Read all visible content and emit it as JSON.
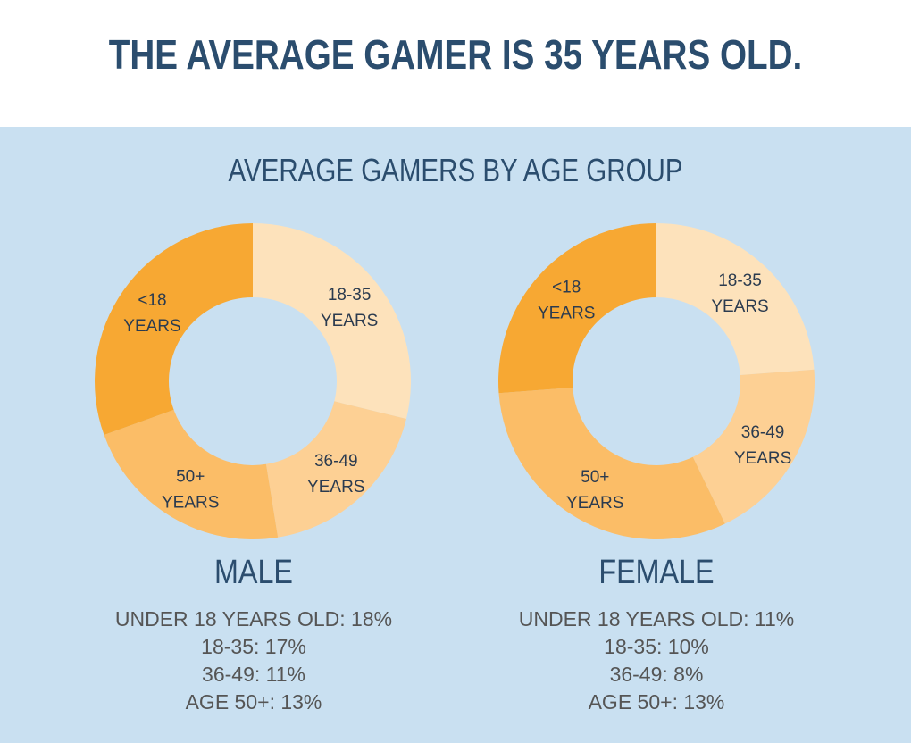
{
  "header": {
    "title": "THE AVERAGE GAMER IS 35 YEARS OLD."
  },
  "subtitle": "AVERAGE GAMERS BY AGE GROUP",
  "colors": {
    "header_bg": "#ffffff",
    "panel_bg": "#c9e0f1",
    "title": "#2b4d6e",
    "seg_under18": "#f7a833",
    "seg_18_35": "#fde2bb",
    "seg_36_49": "#fdd094",
    "seg_50plus": "#fbbd67"
  },
  "chart_data": [
    {
      "type": "pie",
      "title": "MALE",
      "categories": [
        "<18 YEARS",
        "18-35 YEARS",
        "36-49 YEARS",
        "50+ YEARS"
      ],
      "values": [
        18,
        17,
        11,
        13
      ],
      "labels": [
        {
          "line1": "<18",
          "line2": "YEARS"
        },
        {
          "line1": "18-35",
          "line2": "YEARS"
        },
        {
          "line1": "36-49",
          "line2": "YEARS"
        },
        {
          "line1": "50+",
          "line2": "YEARS"
        }
      ],
      "stats": [
        "UNDER 18 YEARS OLD: 18%",
        "18-35: 17%",
        "36-49: 11%",
        "AGE 50+: 13%"
      ]
    },
    {
      "type": "pie",
      "title": "FEMALE",
      "categories": [
        "<18 YEARS",
        "18-35 YEARS",
        "36-49 YEARS",
        "50+ YEARS"
      ],
      "values": [
        11,
        10,
        8,
        13
      ],
      "labels": [
        {
          "line1": "<18",
          "line2": "YEARS"
        },
        {
          "line1": "18-35",
          "line2": "YEARS"
        },
        {
          "line1": "36-49",
          "line2": "YEARS"
        },
        {
          "line1": "50+",
          "line2": "YEARS"
        }
      ],
      "stats": [
        "UNDER 18 YEARS OLD: 11%",
        "18-35: 10%",
        "36-49: 8%",
        "AGE 50+: 13%"
      ]
    }
  ]
}
